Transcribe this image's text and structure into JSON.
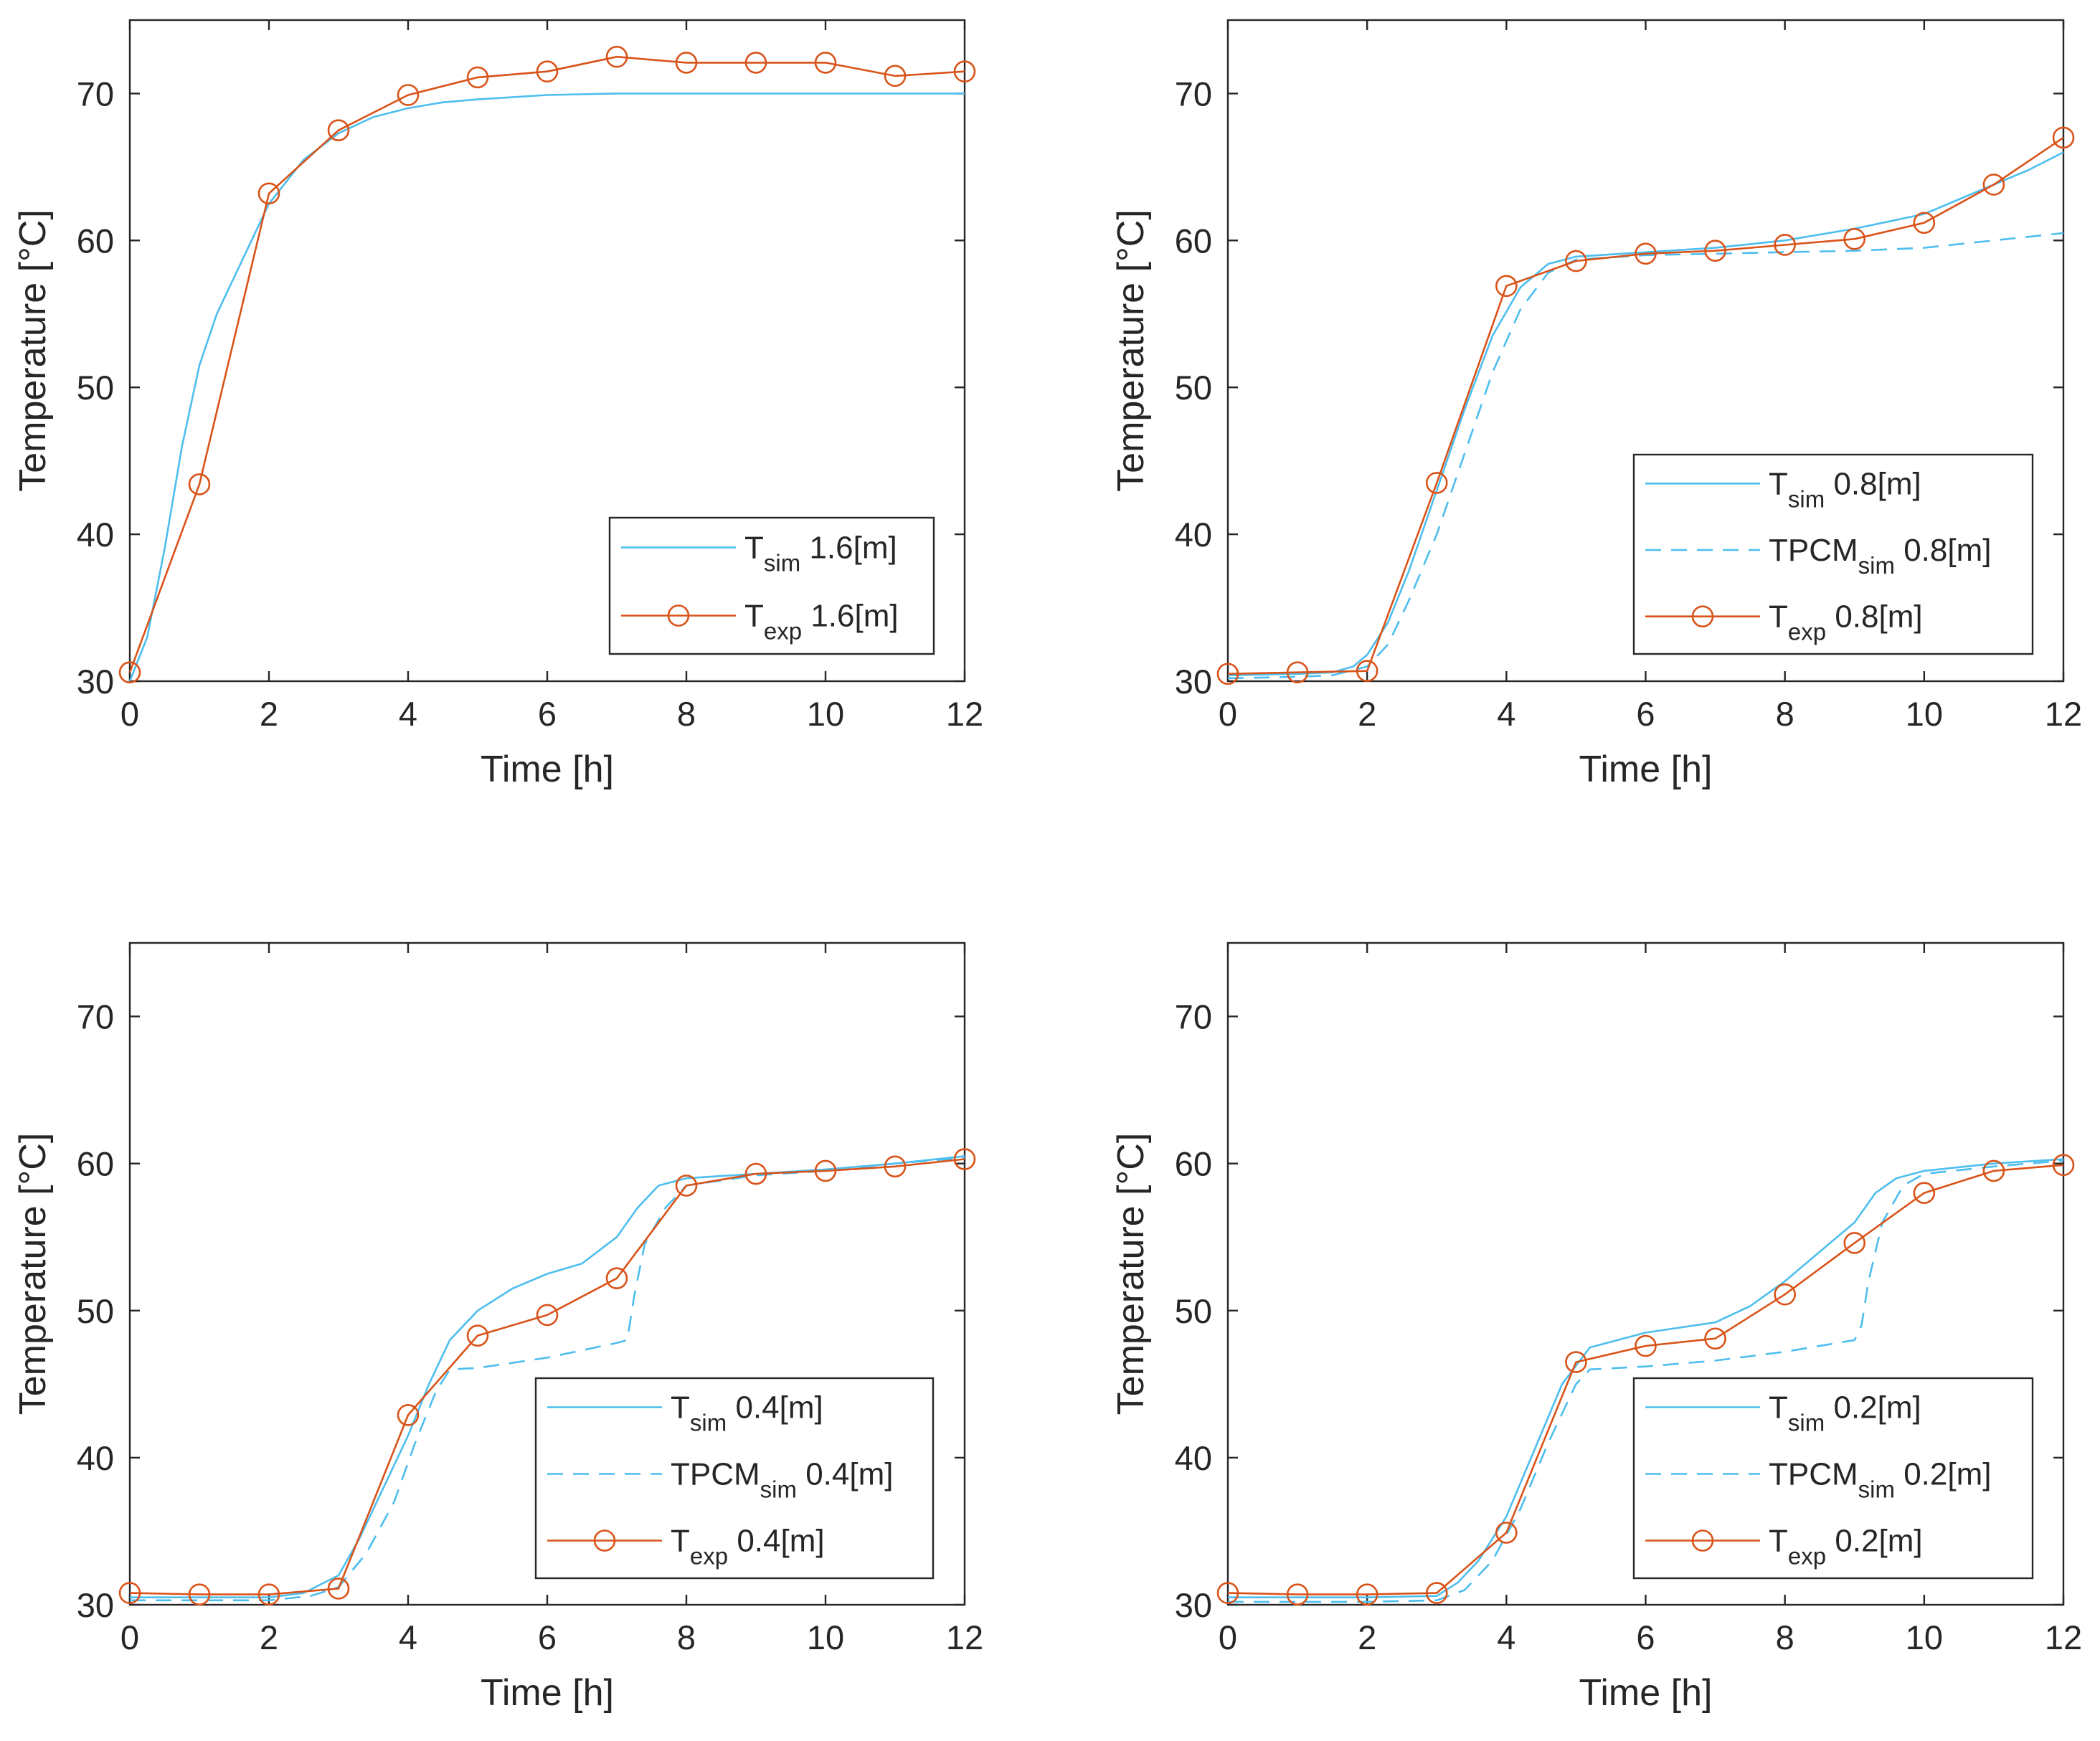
{
  "chart_data": [
    {
      "type": "line",
      "xlabel": "Time [h]",
      "ylabel": "Temperature [°C]",
      "xlim": [
        0,
        12
      ],
      "ylim": [
        30,
        75
      ],
      "xticks": [
        "0",
        "2",
        "4",
        "6",
        "8",
        "10",
        "12"
      ],
      "yticks": [
        "30",
        "40",
        "50",
        "60",
        "70"
      ],
      "grid": false,
      "legend_position": "bottom-right",
      "series": [
        {
          "name": "T_sim 1.6[m]",
          "legend_main": "T",
          "legend_sub": "sim",
          "legend_rest": " 1.6[m]",
          "style": "solid",
          "color": "#4DBEEE",
          "marker": "none",
          "x": [
            0,
            0.25,
            0.5,
            0.75,
            1,
            1.25,
            1.5,
            1.75,
            2,
            2.5,
            3,
            3.5,
            4,
            4.5,
            5,
            6,
            7,
            8,
            9,
            10,
            11,
            12
          ],
          "y": [
            30,
            33,
            39,
            46,
            51.5,
            55,
            57.5,
            60,
            62.5,
            65.5,
            67.3,
            68.4,
            69,
            69.4,
            69.6,
            69.9,
            70,
            70,
            70,
            70,
            70,
            70
          ]
        },
        {
          "name": "T_exp 1.6[m]",
          "legend_main": "T",
          "legend_sub": "exp",
          "legend_rest": " 1.6[m]",
          "style": "solid",
          "color": "#D95319",
          "marker": "circle",
          "x": [
            0,
            1,
            2,
            3,
            4,
            5,
            6,
            7,
            8,
            9,
            10,
            11,
            12
          ],
          "y": [
            30.6,
            43.4,
            63.2,
            67.5,
            69.9,
            71.1,
            71.5,
            72.5,
            72.1,
            72.1,
            72.1,
            71.2,
            71.5
          ]
        }
      ]
    },
    {
      "type": "line",
      "xlabel": "Time [h]",
      "ylabel": "Temperature [°C]",
      "xlim": [
        0,
        12
      ],
      "ylim": [
        30,
        75
      ],
      "xticks": [
        "0",
        "2",
        "4",
        "6",
        "8",
        "10",
        "12"
      ],
      "yticks": [
        "30",
        "40",
        "50",
        "60",
        "70"
      ],
      "grid": false,
      "legend_position": "bottom-right",
      "series": [
        {
          "name": "T_sim 0.8[m]",
          "legend_main": "T",
          "legend_sub": "sim",
          "legend_rest": " 0.8[m]",
          "style": "solid",
          "color": "#4DBEEE",
          "marker": "none",
          "x": [
            0,
            1,
            1.5,
            1.8,
            2,
            2.3,
            2.6,
            3,
            3.4,
            3.8,
            4.2,
            4.6,
            5,
            6,
            7,
            8,
            9,
            10,
            11,
            11.5,
            12
          ],
          "y": [
            30.4,
            30.5,
            30.6,
            31,
            31.8,
            34,
            37.5,
            43,
            48.5,
            53.5,
            56.8,
            58.4,
            58.9,
            59.2,
            59.5,
            60,
            60.8,
            61.8,
            63.8,
            64.8,
            66
          ]
        },
        {
          "name": "TPCM_sim 0.8[m]",
          "legend_main": "TPCM",
          "legend_sub": "sim",
          "legend_rest": " 0.8[m]",
          "style": "dashed",
          "color": "#4DBEEE",
          "marker": "none",
          "x": [
            0,
            1,
            1.5,
            2,
            2.3,
            2.6,
            3,
            3.4,
            3.8,
            4.2,
            4.6,
            5,
            6,
            7,
            8,
            9,
            10,
            11,
            12
          ],
          "y": [
            30.2,
            30.3,
            30.4,
            31,
            32.5,
            35.5,
            40,
            45.5,
            51,
            55.3,
            57.8,
            58.7,
            59,
            59.1,
            59.2,
            59.3,
            59.5,
            60,
            60.5
          ]
        },
        {
          "name": "T_exp 0.8[m]",
          "legend_main": "T",
          "legend_sub": "exp",
          "legend_rest": " 0.8[m]",
          "style": "solid",
          "color": "#D95319",
          "marker": "circle",
          "x": [
            0,
            1,
            2,
            3,
            4,
            5,
            6,
            7,
            8,
            9,
            10,
            11,
            12
          ],
          "y": [
            30.5,
            30.6,
            30.7,
            43.5,
            56.9,
            58.6,
            59.1,
            59.3,
            59.7,
            60.1,
            61.2,
            63.8,
            67.0
          ]
        }
      ]
    },
    {
      "type": "line",
      "xlabel": "Time [h]",
      "ylabel": "Temperature [°C]",
      "xlim": [
        0,
        12
      ],
      "ylim": [
        30,
        75
      ],
      "xticks": [
        "0",
        "2",
        "4",
        "6",
        "8",
        "10",
        "12"
      ],
      "yticks": [
        "30",
        "40",
        "50",
        "60",
        "70"
      ],
      "grid": false,
      "legend_position": "bottom-right",
      "series": [
        {
          "name": "T_sim 0.4[m]",
          "legend_main": "T",
          "legend_sub": "sim",
          "legend_rest": " 0.4[m]",
          "style": "solid",
          "color": "#4DBEEE",
          "marker": "none",
          "x": [
            0,
            1,
            2,
            2.5,
            3,
            3.3,
            3.6,
            4,
            4.3,
            4.6,
            5,
            5.5,
            6,
            6.5,
            7,
            7.3,
            7.6,
            8,
            9,
            10,
            11,
            12
          ],
          "y": [
            30.5,
            30.5,
            30.5,
            30.8,
            32,
            34.5,
            37.5,
            41.5,
            45,
            48,
            50,
            51.5,
            52.5,
            53.2,
            55,
            57,
            58.5,
            59,
            59.3,
            59.6,
            60,
            60.5
          ]
        },
        {
          "name": "TPCM_sim 0.4[m]",
          "legend_main": "TPCM",
          "legend_sub": "sim",
          "legend_rest": " 0.4[m]",
          "style": "dashed",
          "color": "#4DBEEE",
          "marker": "none",
          "x": [
            0,
            1,
            2,
            2.6,
            3,
            3.4,
            3.8,
            4.1,
            4.4,
            4.6,
            5,
            6,
            7,
            7.15,
            7.25,
            7.4,
            7.7,
            8,
            9,
            10,
            11,
            12
          ],
          "y": [
            30.3,
            30.3,
            30.3,
            30.6,
            31.2,
            33.5,
            37,
            41,
            44.5,
            46,
            46.1,
            46.8,
            47.8,
            48,
            51,
            54.5,
            57,
            58.5,
            59.2,
            59.5,
            60,
            60.4
          ]
        },
        {
          "name": "T_exp 0.4[m]",
          "legend_main": "T",
          "legend_sub": "exp",
          "legend_rest": " 0.4[m]",
          "style": "solid",
          "color": "#D95319",
          "marker": "circle",
          "x": [
            0,
            1,
            2,
            3,
            4,
            5,
            6,
            7,
            8,
            9,
            10,
            11,
            12
          ],
          "y": [
            30.8,
            30.7,
            30.7,
            31.1,
            42.9,
            48.3,
            49.7,
            52.2,
            58.5,
            59.3,
            59.5,
            59.8,
            60.3
          ]
        }
      ]
    },
    {
      "type": "line",
      "xlabel": "Time [h]",
      "ylabel": "Temperature [°C]",
      "xlim": [
        0,
        12
      ],
      "ylim": [
        30,
        75
      ],
      "xticks": [
        "0",
        "2",
        "4",
        "6",
        "8",
        "10",
        "12"
      ],
      "yticks": [
        "30",
        "40",
        "50",
        "60",
        "70"
      ],
      "grid": false,
      "legend_position": "bottom-right",
      "series": [
        {
          "name": "T_sim 0.2[m]",
          "legend_main": "T",
          "legend_sub": "sim",
          "legend_rest": " 0.2[m]",
          "style": "solid",
          "color": "#4DBEEE",
          "marker": "none",
          "x": [
            0,
            1,
            2,
            3,
            3.3,
            3.6,
            4,
            4.4,
            4.8,
            5.2,
            6,
            7,
            7.5,
            8,
            8.5,
            9,
            9.3,
            9.6,
            10,
            11,
            12
          ],
          "y": [
            30.5,
            30.5,
            30.5,
            30.6,
            31.5,
            33,
            36,
            40.5,
            45,
            47.5,
            48.5,
            49.2,
            50.3,
            52,
            54,
            56,
            58,
            59,
            59.5,
            60,
            60.3
          ]
        },
        {
          "name": "TPCM_sim 0.2[m]",
          "legend_main": "TPCM",
          "legend_sub": "sim",
          "legend_rest": " 0.2[m]",
          "style": "dashed",
          "color": "#4DBEEE",
          "marker": "none",
          "x": [
            0,
            1,
            2,
            3,
            3.4,
            3.8,
            4.2,
            4.6,
            5,
            5.2,
            6,
            7,
            8,
            9,
            9.1,
            9.2,
            9.4,
            9.7,
            10,
            11,
            12
          ],
          "y": [
            30.2,
            30.2,
            30.2,
            30.3,
            31,
            33,
            36.5,
            41,
            45,
            46,
            46.2,
            46.6,
            47.2,
            48,
            49,
            52,
            56,
            58.5,
            59.3,
            59.8,
            60.2
          ]
        },
        {
          "name": "T_exp 0.2[m]",
          "legend_main": "T",
          "legend_sub": "exp",
          "legend_rest": " 0.2[m]",
          "style": "solid",
          "color": "#D95319",
          "marker": "circle",
          "x": [
            0,
            1,
            2,
            3,
            4,
            5,
            6,
            7,
            8,
            9,
            10,
            11,
            12
          ],
          "y": [
            30.8,
            30.7,
            30.7,
            30.8,
            34.9,
            46.5,
            47.6,
            48.1,
            51.1,
            54.6,
            58.0,
            59.5,
            59.9
          ]
        }
      ]
    }
  ]
}
